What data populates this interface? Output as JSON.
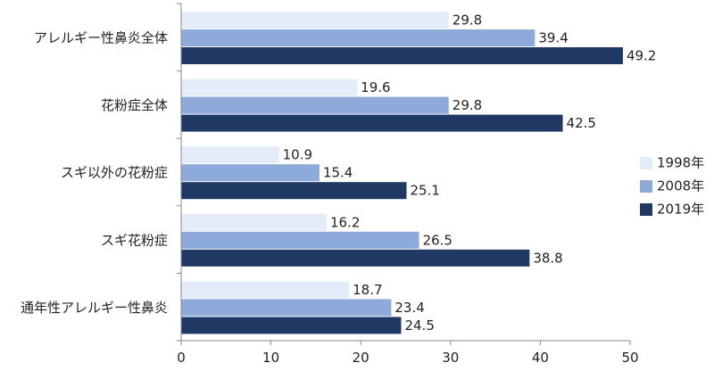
{
  "chart_data": {
    "type": "bar",
    "orientation": "horizontal",
    "categories": [
      "アレルギー性鼻炎全体",
      "花粉症全体",
      "スギ以外の花粉症",
      "スギ花粉症",
      "通年性アレルギー性鼻炎"
    ],
    "series": [
      {
        "name": "1998年",
        "color": "#e3ecf8",
        "values": [
          29.8,
          19.6,
          10.9,
          16.2,
          18.7
        ]
      },
      {
        "name": "2008年",
        "color": "#8eaadb",
        "values": [
          39.4,
          29.8,
          15.4,
          26.5,
          23.4
        ]
      },
      {
        "name": "2019年",
        "color": "#1f3864",
        "values": [
          49.2,
          42.5,
          25.1,
          38.8,
          24.5
        ]
      }
    ],
    "xlim": [
      0,
      50
    ],
    "xticks": [
      0,
      10,
      20,
      30,
      40,
      50
    ],
    "grid": false,
    "legend_position": "right"
  }
}
